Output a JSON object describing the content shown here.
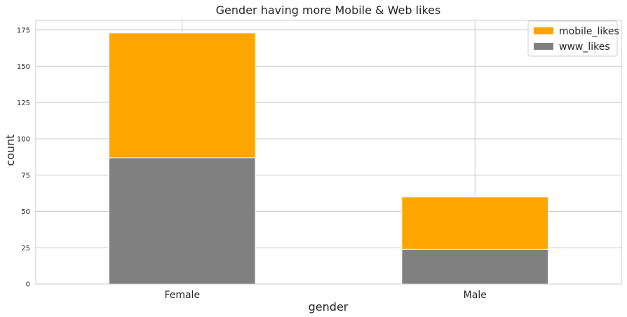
{
  "chart_data": {
    "type": "bar",
    "stacked": true,
    "title": "Gender having more Mobile & Web likes",
    "xlabel": "gender",
    "ylabel": "count",
    "categories": [
      "Female",
      "Male"
    ],
    "series": [
      {
        "name": "www_likes",
        "values": [
          87,
          24
        ],
        "color": "#808080"
      },
      {
        "name": "mobile_likes",
        "values": [
          86,
          36
        ],
        "color": "#ffa500"
      }
    ],
    "legend_order": [
      "mobile_likes",
      "www_likes"
    ],
    "ylim": [
      0,
      181.65
    ],
    "yticks": [
      0,
      25,
      50,
      75,
      100,
      125,
      150,
      175
    ],
    "ytick_labels": [
      "0",
      "25",
      "50",
      "75",
      "100",
      "125",
      "150",
      "175"
    ],
    "grid": true,
    "legend_position": "top-right"
  }
}
